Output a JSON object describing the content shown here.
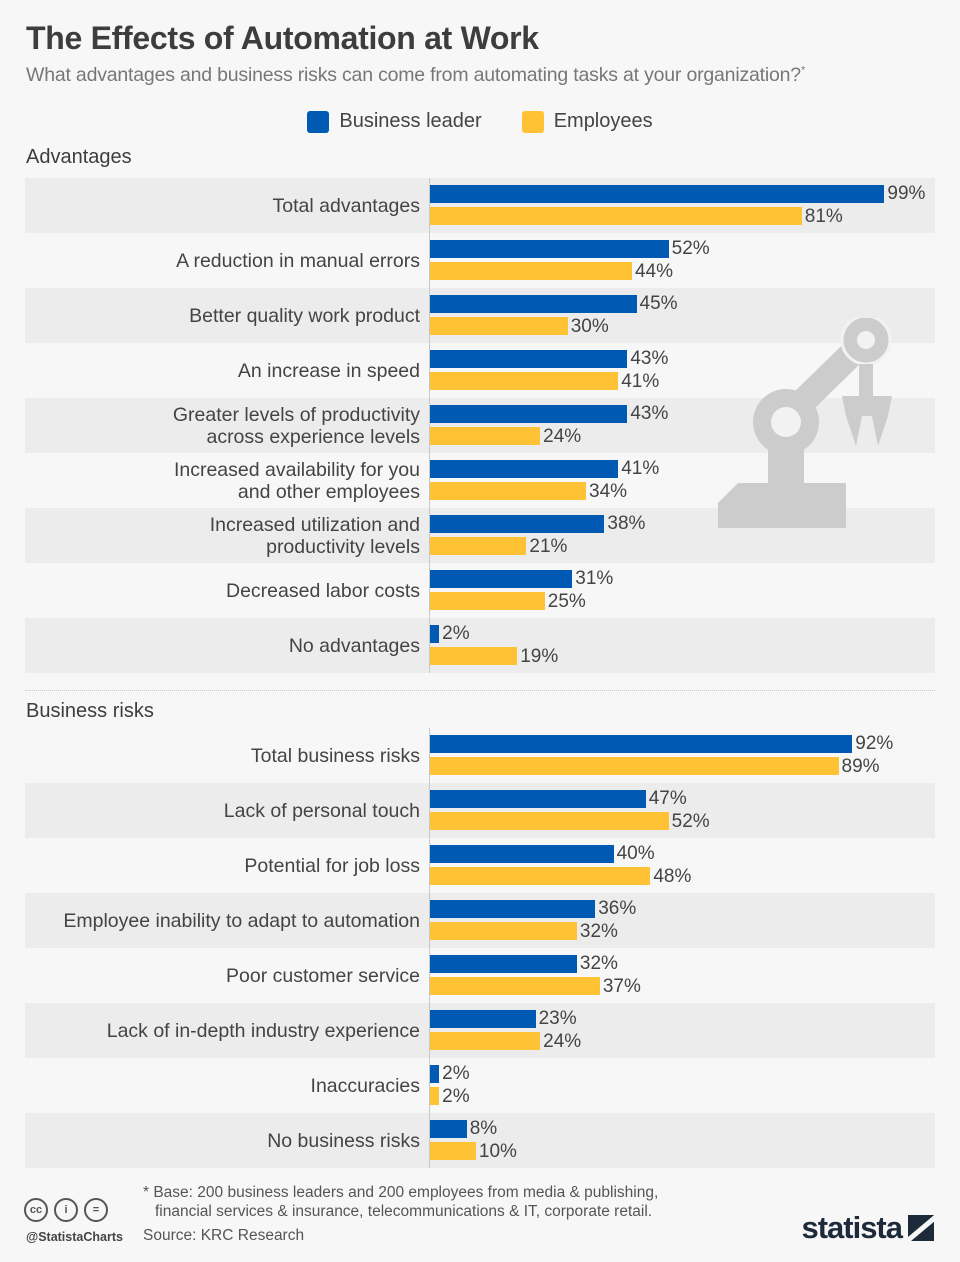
{
  "title": "The Effects of Automation at Work",
  "subtitle": "What advantages and business risks can come from automating tasks at your organization?",
  "subtitle_marker": "*",
  "legend": [
    {
      "label": "Business leader",
      "color": "#0059b3"
    },
    {
      "label": "Employees",
      "color": "#ffc234"
    }
  ],
  "chart_data": [
    {
      "type": "bar",
      "orientation": "horizontal",
      "title": "Advantages",
      "categories": [
        "Total advantages",
        "A reduction in manual errors",
        "Better quality work product",
        "An increase in speed",
        "Greater levels of productivity across experience levels",
        "Increased availability for you and other employees",
        "Increased utilization and productivity levels",
        "Decreased labor costs",
        "No advantages"
      ],
      "category_lines": [
        [
          "Total advantages"
        ],
        [
          "A reduction in manual errors"
        ],
        [
          "Better quality work product"
        ],
        [
          "An increase in speed"
        ],
        [
          "Greater levels of productivity",
          "across experience levels"
        ],
        [
          "Increased availability for you",
          "and other employees"
        ],
        [
          "Increased utilization and",
          "productivity levels"
        ],
        [
          "Decreased labor costs"
        ],
        [
          "No advantages"
        ]
      ],
      "series": [
        {
          "name": "Business leader",
          "values": [
            99,
            52,
            45,
            43,
            43,
            41,
            38,
            31,
            2
          ]
        },
        {
          "name": "Employees",
          "values": [
            81,
            44,
            30,
            41,
            24,
            34,
            21,
            25,
            19
          ]
        }
      ],
      "value_suffix": "%",
      "xlim": [
        0,
        100
      ],
      "grid": false
    },
    {
      "type": "bar",
      "orientation": "horizontal",
      "title": "Business risks",
      "categories": [
        "Total business risks",
        "Lack of personal touch",
        "Potential for job loss",
        "Employee inability to adapt to automation",
        "Poor customer service",
        "Lack of in-depth industry experience",
        "Inaccuracies",
        "No business risks"
      ],
      "category_lines": [
        [
          "Total business risks"
        ],
        [
          "Lack of personal touch"
        ],
        [
          "Potential for job loss"
        ],
        [
          "Employee inability to adapt to automation"
        ],
        [
          "Poor customer service"
        ],
        [
          "Lack of in-depth industry experience"
        ],
        [
          "Inaccuracies"
        ],
        [
          "No business risks"
        ]
      ],
      "series": [
        {
          "name": "Business leader",
          "values": [
            92,
            47,
            40,
            36,
            32,
            23,
            2,
            8
          ]
        },
        {
          "name": "Employees",
          "values": [
            89,
            52,
            48,
            32,
            37,
            24,
            2,
            10
          ]
        }
      ],
      "value_suffix": "%",
      "xlim": [
        0,
        100
      ],
      "grid": false
    }
  ],
  "footer": {
    "note_line1": "* Base: 200 business leaders and 200 employees from media & publishing,",
    "note_line2": "financial services & insurance, telecommunications & IT, corporate retail.",
    "source": "Source: KRC Research",
    "handle": "@StatistaCharts",
    "license_icons": [
      "cc",
      "by",
      "nd"
    ],
    "license_glyphs": [
      "cc",
      "i",
      "="
    ],
    "brand": "statista"
  },
  "illustration": "robot-arm-icon"
}
